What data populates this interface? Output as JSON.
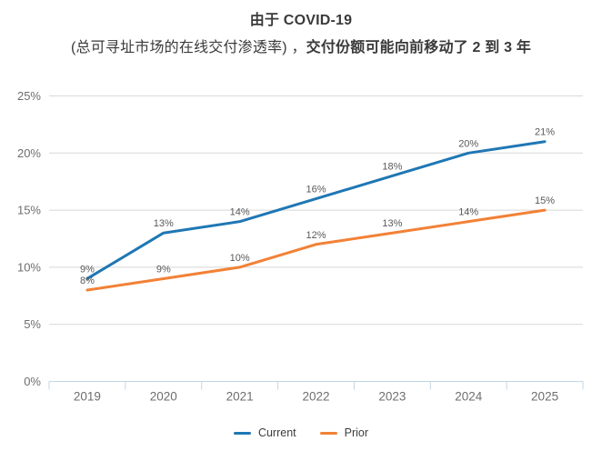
{
  "title": {
    "line1": "由于 COVID-19",
    "line2_regular": "(总可寻址市场的在线交付渗透率) ，",
    "line2_bold": "交付份额可能向前移动了 2 到 3 年"
  },
  "chart_data": {
    "type": "line",
    "title": "由于 COVID-19 (总可寻址市场的在线交付渗透率)，交付份额可能向前移动了 2 到 3 年",
    "categories": [
      "2019",
      "2020",
      "2021",
      "2022",
      "2023",
      "2024",
      "2025"
    ],
    "series": [
      {
        "name": "Current",
        "color": "#1f77b4",
        "values": [
          9,
          13,
          14,
          16,
          18,
          20,
          21
        ]
      },
      {
        "name": "Prior",
        "color": "#f28136",
        "values": [
          8,
          9,
          10,
          12,
          13,
          14,
          15
        ]
      }
    ],
    "ylim": [
      0,
      25
    ],
    "ytick_step": 5,
    "y_tick_labels": [
      "0%",
      "5%",
      "10%",
      "15%",
      "20%",
      "25%"
    ],
    "value_suffix": "%",
    "grid": true,
    "legend_position": "bottom",
    "styles": {
      "grid_color": "#d8d8d8",
      "axis_color": "#c3d6e5",
      "data_label_color": "#595959",
      "tick_label_color": "#6e6e6e",
      "line_width": 3
    }
  }
}
